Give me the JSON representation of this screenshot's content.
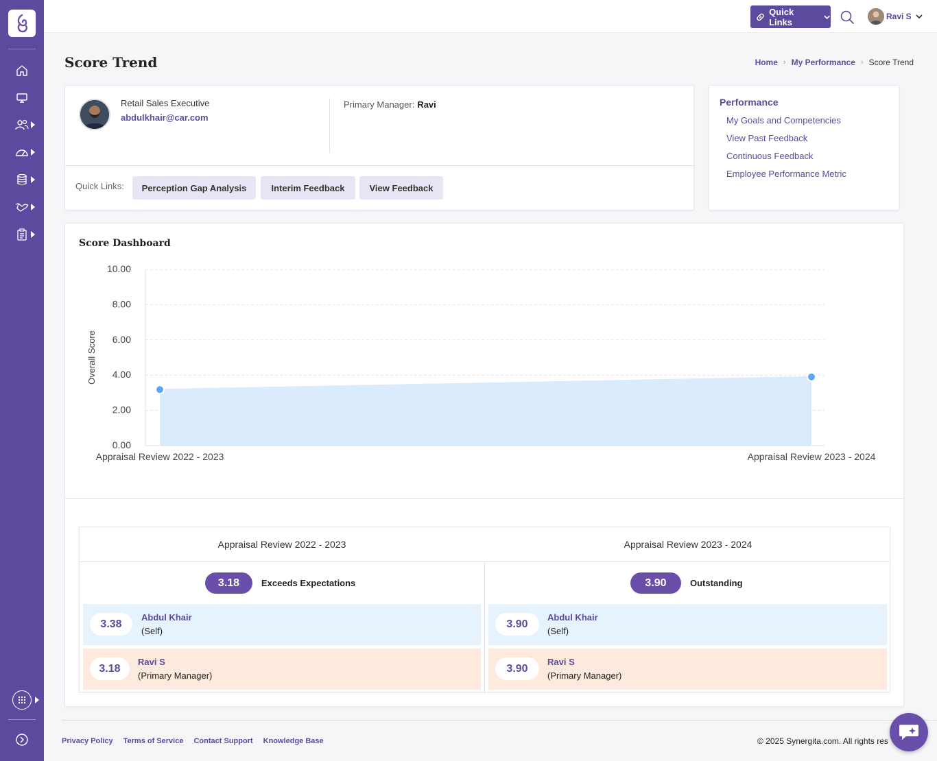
{
  "sidebar": {
    "items": [
      {
        "icon": "home-icon"
      },
      {
        "icon": "monitor-icon"
      },
      {
        "icon": "users-icon"
      },
      {
        "icon": "dashboard-gauge-icon"
      },
      {
        "icon": "database-icon"
      },
      {
        "icon": "handshake-icon"
      },
      {
        "icon": "clipboard-icon"
      }
    ],
    "bottom": [
      {
        "icon": "apps-grid-icon"
      },
      {
        "icon": "expand-icon"
      }
    ]
  },
  "topbar": {
    "quick_links_label": "Quick Links",
    "user_name": "Ravi S"
  },
  "page": {
    "title": "Score Trend",
    "breadcrumb": [
      "Home",
      "My Performance",
      "Score Trend"
    ]
  },
  "profile": {
    "designation": "Retail Sales Executive",
    "email": "abdulkhair@car.com",
    "primary_manager_label": "Primary Manager:",
    "primary_manager": "Ravi",
    "quick_links_label": "Quick Links:",
    "quick_links": [
      "Perception Gap Analysis",
      "Interim Feedback",
      "View Feedback"
    ]
  },
  "performance_menu": {
    "title": "Performance",
    "links": [
      "My Goals and Competencies",
      "View Past Feedback",
      "Continuous Feedback",
      "Employee Performance Metric"
    ]
  },
  "dashboard": {
    "title": "Score Dashboard"
  },
  "chart_data": {
    "type": "area",
    "title": "",
    "xlabel": "",
    "ylabel": "Overall Score",
    "categories": [
      "Appraisal Review 2022 - 2023",
      "Appraisal Review 2023 - 2024"
    ],
    "values": [
      3.18,
      3.9
    ],
    "ylim": [
      0,
      10
    ],
    "yticks": [
      "0.00",
      "2.00",
      "4.00",
      "6.00",
      "8.00",
      "10.00"
    ],
    "grid": true,
    "color": "#5aa8f5",
    "fill_color": "#d9ebfd"
  },
  "summary": {
    "columns": [
      {
        "header": "Appraisal Review 2022 - 2023",
        "score": "3.18",
        "rating": "Exceeds Expectations",
        "rows": [
          {
            "score": "3.38",
            "name": "Abdul Khair",
            "role": "(Self)"
          },
          {
            "score": "3.18",
            "name": "Ravi S",
            "role": "(Primary Manager)"
          }
        ]
      },
      {
        "header": "Appraisal Review 2023 - 2024",
        "score": "3.90",
        "rating": "Outstanding",
        "rows": [
          {
            "score": "3.90",
            "name": "Abdul Khair",
            "role": "(Self)"
          },
          {
            "score": "3.90",
            "name": "Ravi S",
            "role": "(Primary Manager)"
          }
        ]
      }
    ]
  },
  "footer": {
    "links": [
      "Privacy Policy",
      "Terms of Service",
      "Contact Support",
      "Knowledge Base"
    ],
    "copyright": "© 2025 Synergita.com. All rights res"
  },
  "colors": {
    "brand": "#5c4a9e",
    "pill": "#6a4faa",
    "self_row": "#e6f2fc",
    "manager_row": "#fde9dd"
  }
}
